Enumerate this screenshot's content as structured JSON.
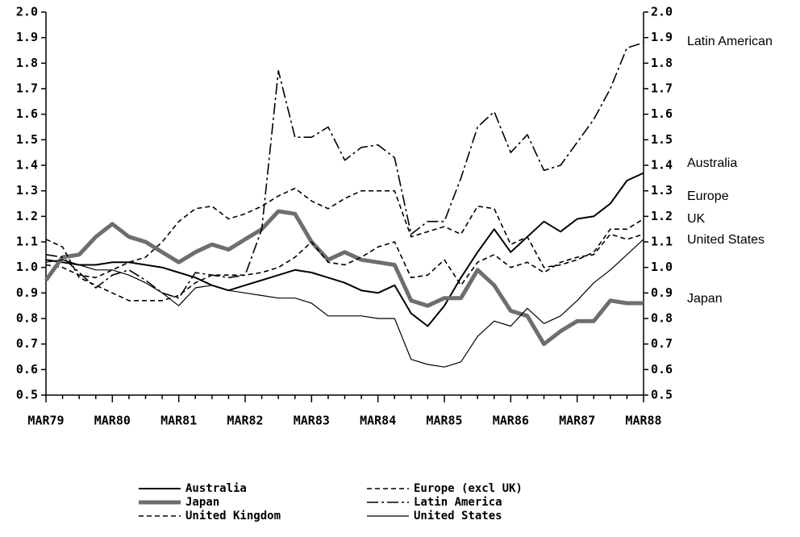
{
  "chart_data": {
    "type": "line",
    "categories": [
      "MAR79",
      null,
      null,
      null,
      "MAR80",
      null,
      null,
      null,
      "MAR81",
      null,
      null,
      null,
      "MAR82",
      null,
      null,
      null,
      "MAR83",
      null,
      null,
      null,
      "MAR84",
      null,
      null,
      null,
      "MAR85",
      null,
      null,
      null,
      "MAR86",
      null,
      null,
      null,
      "MAR87",
      null,
      null,
      null,
      "MAR88"
    ],
    "ylim": [
      0.5,
      2.0
    ],
    "yticks": [
      {
        "value": 0.5,
        "label": "0.5"
      },
      {
        "value": 0.6,
        "label": "0.6"
      },
      {
        "value": 0.7,
        "label": "0.7"
      },
      {
        "value": 0.8,
        "label": "0.8"
      },
      {
        "value": 0.9,
        "label": "0.9"
      },
      {
        "value": 1.0,
        "label": "1.0"
      },
      {
        "value": 1.1,
        "label": "1.1"
      },
      {
        "value": 1.2,
        "label": "1.2"
      },
      {
        "value": 1.3,
        "label": "1.3"
      },
      {
        "value": 1.4,
        "label": "1.4"
      },
      {
        "value": 1.5,
        "label": "1.5"
      },
      {
        "value": 1.6,
        "label": "1.6"
      },
      {
        "value": 1.7,
        "label": "1.7"
      },
      {
        "value": 1.8,
        "label": "1.8"
      },
      {
        "value": 1.9,
        "label": "1.9"
      },
      {
        "value": 2.0,
        "label": "2.0"
      }
    ],
    "y2lim": [
      0.5,
      2.0
    ],
    "y2ticks": [
      {
        "value": 0.5,
        "label": "0.5"
      },
      {
        "value": 0.6,
        "label": "0.6"
      },
      {
        "value": 0.7,
        "label": "0.7"
      },
      {
        "value": 0.8,
        "label": "0.8"
      },
      {
        "value": 0.9,
        "label": "0.9"
      },
      {
        "value": 1.0,
        "label": "1.0"
      },
      {
        "value": 1.1,
        "label": "1.1"
      },
      {
        "value": 1.2,
        "label": "1.2"
      },
      {
        "value": 1.3,
        "label": "1.3"
      },
      {
        "value": 1.4,
        "label": "1.4"
      },
      {
        "value": 1.5,
        "label": "1.5"
      },
      {
        "value": 1.6,
        "label": "1.6"
      },
      {
        "value": 1.7,
        "label": "1.7"
      },
      {
        "value": 1.8,
        "label": "1.8"
      },
      {
        "value": 1.9,
        "label": "1.9"
      },
      {
        "value": 2.0,
        "label": "2.0"
      }
    ],
    "annotations": [
      "Latin American",
      "Australia",
      "Europe",
      "UK",
      "United States",
      "Japan"
    ],
    "series": [
      {
        "name": "Australia",
        "color": "#000000",
        "style": "solid",
        "values": [
          1.03,
          1.02,
          1.01,
          1.01,
          1.02,
          1.02,
          1.01,
          1.0,
          0.98,
          0.96,
          0.93,
          0.91,
          0.93,
          0.95,
          0.97,
          0.99,
          0.98,
          0.96,
          0.94,
          0.91,
          0.9,
          0.93,
          0.82,
          0.77,
          0.85,
          0.96,
          1.06,
          1.15,
          1.06,
          1.12,
          1.18,
          1.14,
          1.19,
          1.2,
          1.25,
          1.34,
          1.37
        ]
      },
      {
        "name": "Europe (excl UK)",
        "color": "#000000",
        "style": "dashed",
        "values": [
          1.01,
          1.0,
          0.97,
          0.96,
          0.99,
          1.02,
          1.04,
          1.1,
          1.18,
          1.23,
          1.24,
          1.19,
          1.21,
          1.24,
          1.28,
          1.31,
          1.26,
          1.23,
          1.27,
          1.3,
          1.3,
          1.3,
          1.12,
          1.14,
          1.16,
          1.13,
          1.24,
          1.23,
          1.09,
          1.12,
          1.0,
          1.01,
          1.03,
          1.06,
          1.15,
          1.15,
          1.19
        ]
      },
      {
        "name": "Japan",
        "color": "#6e6e6e",
        "style": "thick",
        "values": [
          0.95,
          1.04,
          1.05,
          1.12,
          1.17,
          1.12,
          1.1,
          1.06,
          1.02,
          1.06,
          1.09,
          1.07,
          1.11,
          1.15,
          1.22,
          1.21,
          1.1,
          1.03,
          1.06,
          1.03,
          1.02,
          1.01,
          0.87,
          0.85,
          0.88,
          0.88,
          0.99,
          0.93,
          0.83,
          0.81,
          0.7,
          0.75,
          0.79,
          0.79,
          0.87,
          0.86,
          0.86
        ]
      },
      {
        "name": "Latin America",
        "color": "#000000",
        "style": "dashdot",
        "values": [
          1.05,
          1.04,
          0.98,
          0.92,
          0.97,
          0.99,
          0.95,
          0.9,
          0.88,
          0.98,
          0.97,
          0.96,
          0.97,
          1.15,
          1.77,
          1.51,
          1.51,
          1.55,
          1.42,
          1.47,
          1.48,
          1.43,
          1.13,
          1.18,
          1.18,
          1.35,
          1.55,
          1.61,
          1.45,
          1.52,
          1.38,
          1.4,
          1.49,
          1.58,
          1.7,
          1.86,
          1.88
        ]
      },
      {
        "name": "United Kingdom",
        "color": "#000000",
        "style": "dashed",
        "values": [
          1.11,
          1.08,
          0.96,
          0.93,
          0.9,
          0.87,
          0.87,
          0.87,
          0.89,
          0.94,
          0.97,
          0.97,
          0.97,
          0.98,
          1.0,
          1.04,
          1.1,
          1.02,
          1.01,
          1.04,
          1.08,
          1.1,
          0.96,
          0.97,
          1.03,
          0.93,
          1.02,
          1.05,
          1.0,
          1.02,
          0.98,
          1.02,
          1.04,
          1.05,
          1.13,
          1.11,
          1.13
        ]
      },
      {
        "name": "United States",
        "color": "#000000",
        "style": "thin",
        "values": [
          1.02,
          1.03,
          1.01,
          0.99,
          0.99,
          0.97,
          0.94,
          0.9,
          0.85,
          0.92,
          0.93,
          0.91,
          0.9,
          0.89,
          0.88,
          0.88,
          0.86,
          0.81,
          0.81,
          0.81,
          0.8,
          0.8,
          0.64,
          0.62,
          0.61,
          0.63,
          0.73,
          0.79,
          0.77,
          0.84,
          0.78,
          0.81,
          0.87,
          0.94,
          0.99,
          1.05,
          1.11
        ]
      }
    ]
  }
}
